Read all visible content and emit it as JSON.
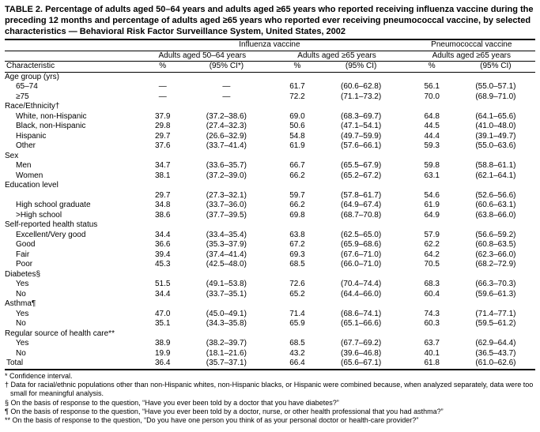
{
  "title": "TABLE 2. Percentage of adults aged 50–64 years and adults aged ≥65 years who reported receiving influenza vaccine during the preceding 12 months and percentage of adults aged ≥65 years who reported ever receiving pneumococcal vaccine, by selected characteristics — Behavioral Risk Factor Surveillance System, United States, 2002",
  "columns": {
    "characteristic": "Characteristic",
    "influenza": "Influenza vaccine",
    "pneumo": "Pneumococcal vaccine",
    "g1": "Adults aged 50–64 years",
    "g2": "Adults aged ≥65 years",
    "g3": "Adults aged ≥65 years",
    "pct": "%",
    "ci1": "(95% CI*)",
    "ci": "(95% CI)"
  },
  "groups": [
    {
      "label": "Age group (yrs)",
      "rows": [
        {
          "c": "65–74",
          "a": "—",
          "aci": "—",
          "b": "61.7",
          "bci": "(60.6–62.8)",
          "p": "56.1",
          "pci": "(55.0–57.1)"
        },
        {
          "c": "≥75",
          "a": "—",
          "aci": "—",
          "b": "72.2",
          "bci": "(71.1–73.2)",
          "p": "70.0",
          "pci": "(68.9–71.0)"
        }
      ]
    },
    {
      "label": "Race/Ethnicity†",
      "rows": [
        {
          "c": "White, non-Hispanic",
          "a": "37.9",
          "aci": "(37.2–38.6)",
          "b": "69.0",
          "bci": "(68.3–69.7)",
          "p": "64.8",
          "pci": "(64.1–65.6)"
        },
        {
          "c": "Black, non-Hispanic",
          "a": "29.8",
          "aci": "(27.4–32.3)",
          "b": "50.6",
          "bci": "(47.1–54.1)",
          "p": "44.5",
          "pci": "(41.0–48.0)"
        },
        {
          "c": "Hispanic",
          "a": "29.7",
          "aci": "(26.6–32.9)",
          "b": "54.8",
          "bci": "(49.7–59.9)",
          "p": "44.4",
          "pci": "(39.1–49.7)"
        },
        {
          "c": "Other",
          "a": "37.6",
          "aci": "(33.7–41.4)",
          "b": "61.9",
          "bci": "(57.6–66.1)",
          "p": "59.3",
          "pci": "(55.0–63.6)"
        }
      ]
    },
    {
      "label": "Sex",
      "rows": [
        {
          "c": "Men",
          "a": "34.7",
          "aci": "(33.6–35.7)",
          "b": "66.7",
          "bci": "(65.5–67.9)",
          "p": "59.8",
          "pci": "(58.8–61.1)"
        },
        {
          "c": "Women",
          "a": "38.1",
          "aci": "(37.2–39.0)",
          "b": "66.2",
          "bci": "(65.2–67.2)",
          "p": "63.1",
          "pci": "(62.1–64.1)"
        }
      ]
    },
    {
      "label": "Education level",
      "rows": [
        {
          "c": "<High school",
          "a": "29.7",
          "aci": "(27.3–32.1)",
          "b": "59.7",
          "bci": "(57.8–61.7)",
          "p": "54.6",
          "pci": "(52.6–56.6)"
        },
        {
          "c": "High school graduate",
          "a": "34.8",
          "aci": "(33.7–36.0)",
          "b": "66.2",
          "bci": "(64.9–67.4)",
          "p": "61.9",
          "pci": "(60.6–63.1)"
        },
        {
          "c": ">High school",
          "a": "38.6",
          "aci": "(37.7–39.5)",
          "b": "69.8",
          "bci": "(68.7–70.8)",
          "p": "64.9",
          "pci": "(63.8–66.0)"
        }
      ]
    },
    {
      "label": "Self-reported health status",
      "rows": [
        {
          "c": "Excellent/Very good",
          "a": "34.4",
          "aci": "(33.4–35.4)",
          "b": "63.8",
          "bci": "(62.5–65.0)",
          "p": "57.9",
          "pci": "(56.6–59.2)"
        },
        {
          "c": "Good",
          "a": "36.6",
          "aci": "(35.3–37.9)",
          "b": "67.2",
          "bci": "(65.9–68.6)",
          "p": "62.2",
          "pci": "(60.8–63.5)"
        },
        {
          "c": "Fair",
          "a": "39.4",
          "aci": "(37.4–41.4)",
          "b": "69.3",
          "bci": "(67.6–71.0)",
          "p": "64.2",
          "pci": "(62.3–66.0)"
        },
        {
          "c": "Poor",
          "a": "45.3",
          "aci": "(42.5–48.0)",
          "b": "68.5",
          "bci": "(66.0–71.0)",
          "p": "70.5",
          "pci": "(68.2–72.9)"
        }
      ]
    },
    {
      "label": "Diabetes§",
      "rows": [
        {
          "c": "Yes",
          "a": "51.5",
          "aci": "(49.1–53.8)",
          "b": "72.6",
          "bci": "(70.4–74.4)",
          "p": "68.3",
          "pci": "(66.3–70.3)"
        },
        {
          "c": "No",
          "a": "34.4",
          "aci": "(33.7–35.1)",
          "b": "65.2",
          "bci": "(64.4–66.0)",
          "p": "60.4",
          "pci": "(59.6–61.3)"
        }
      ]
    },
    {
      "label": "Asthma¶",
      "rows": [
        {
          "c": "Yes",
          "a": "47.0",
          "aci": "(45.0–49.1)",
          "b": "71.4",
          "bci": "(68.6–74.1)",
          "p": "74.3",
          "pci": "(71.4–77.1)"
        },
        {
          "c": "No",
          "a": "35.1",
          "aci": "(34.3–35.8)",
          "b": "65.9",
          "bci": "(65.1–66.6)",
          "p": "60.3",
          "pci": "(59.5–61.2)"
        }
      ]
    },
    {
      "label": "Regular source of health care**",
      "rows": [
        {
          "c": "Yes",
          "a": "38.9",
          "aci": "(38.2–39.7)",
          "b": "68.5",
          "bci": "(67.7–69.2)",
          "p": "63.7",
          "pci": "(62.9–64.4)"
        },
        {
          "c": "No",
          "a": "19.9",
          "aci": "(18.1–21.6)",
          "b": "43.2",
          "bci": "(39.6–46.8)",
          "p": "40.1",
          "pci": "(36.5–43.7)"
        }
      ]
    }
  ],
  "total": {
    "c": "Total",
    "a": "36.4",
    "aci": "(35.7–37.1)",
    "b": "66.4",
    "bci": "(65.6–67.1)",
    "p": "61.8",
    "pci": "(61.0–62.6)"
  },
  "footnotes": [
    "* Confidence interval.",
    "† Data for racial/ethnic populations other than non-Hispanic whites, non-Hispanic blacks, or Hispanic were combined because, when analyzed separately, data were too small for meaningful analysis.",
    "§ On the basis of response to the question, “Have you ever been told by a doctor that you have diabetes?”",
    "¶ On the basis of response to the question, “Have you ever been told by a doctor, nurse, or other health professional that you had asthma?”",
    "** On the basis of response to the question, “Do you have one person you think of as your personal doctor or health-care provider?”"
  ]
}
